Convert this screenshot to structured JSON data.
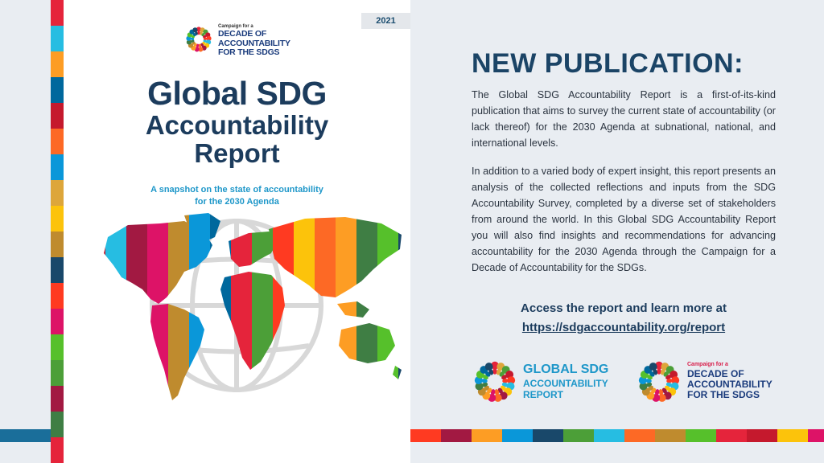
{
  "cover": {
    "year": "2021",
    "logo_small": "Campaign for a",
    "logo_lines": [
      "DECADE OF",
      "ACCOUNTABILITY",
      "FOR THE SDGS"
    ],
    "title_line1": "Global SDG",
    "title_line2": "Accountability",
    "title_line3": "Report",
    "subtitle_line1": "A snapshot on the state of accountability",
    "subtitle_line2": "for the 2030 Agenda"
  },
  "info": {
    "heading": "NEW PUBLICATION:",
    "paragraph1": "The Global SDG Accountability Report is a first-of-its-kind publication that aims to survey the current state of accountability (or lack thereof) for the 2030 Agenda at subnational, national, and international levels.",
    "paragraph2": "In addition to a varied body of expert insight, this report presents an analysis of the collected reflections and inputs from the SDG Accountability Survey, completed by a diverse set of stakeholders from around the world.  In this Global SDG Accountability Report you will also find insights and recommendations for advancing accountability for the 2030 Agenda through the Campaign for a Decade of Accountability for the SDGs.",
    "access_text": "Access the report and learn more at",
    "access_url": "https://sdgaccountability.org/report"
  },
  "logos": {
    "report_line1": "GLOBAL SDG",
    "report_line2": "ACCOUNTABILITY",
    "report_line3": "REPORT",
    "campaign_small": "Campaign for a",
    "campaign_line1": "DECADE OF",
    "campaign_line2": "ACCOUNTABILITY",
    "campaign_line3": "FOR THE SDGS"
  },
  "colors": {
    "sdg": [
      "#e5243b",
      "#dda63a",
      "#4c9f38",
      "#c5192d",
      "#ff3a21",
      "#26bde2",
      "#fcc30b",
      "#a21942",
      "#fd6925",
      "#dd1367",
      "#fd9d24",
      "#bf8b2e",
      "#3f7e44",
      "#0a97d9",
      "#56c02b",
      "#00689d",
      "#19486a"
    ],
    "heading": "#1b4466",
    "accent": "#1e97c9"
  }
}
